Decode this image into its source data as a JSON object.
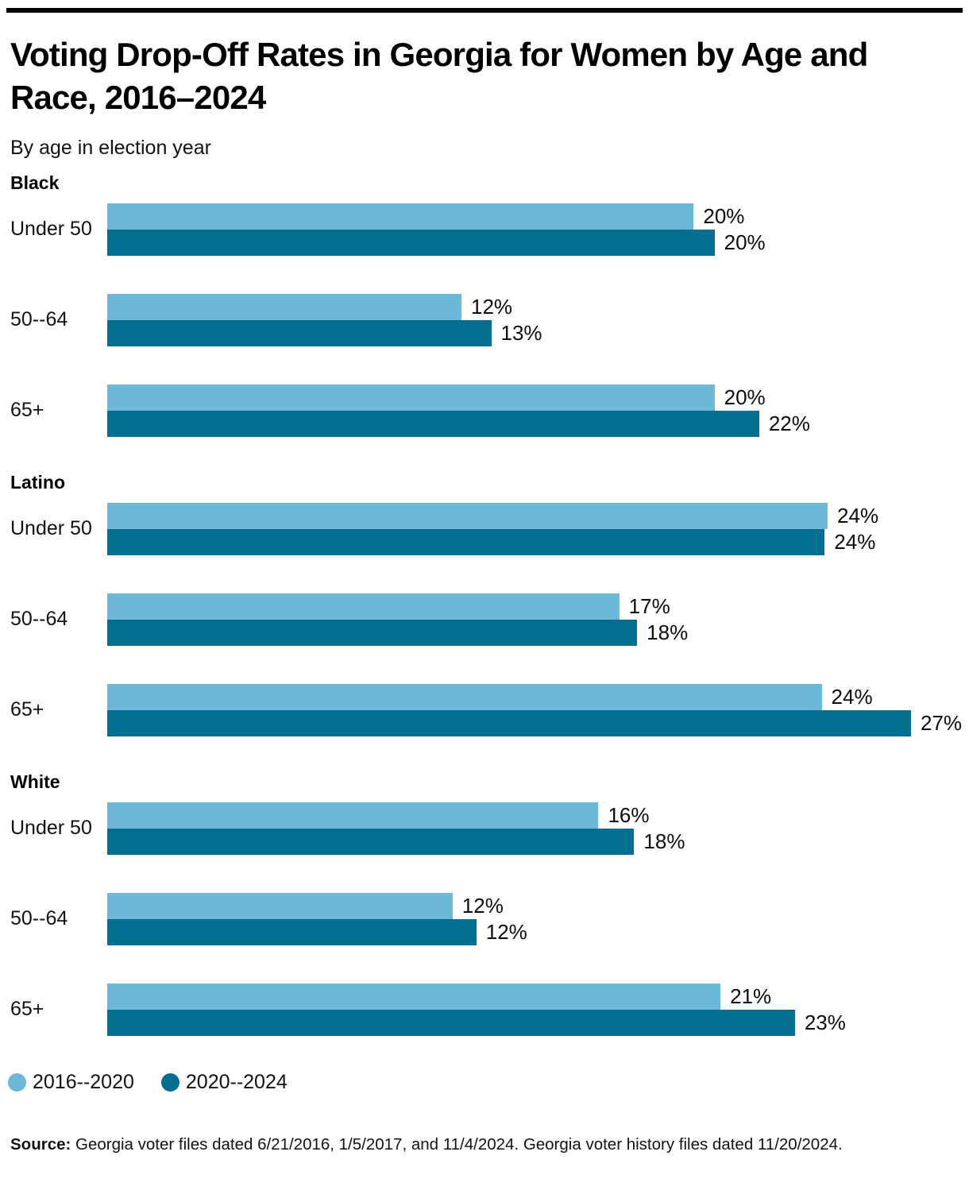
{
  "page": {
    "title": "Voting Drop-Off Rates in Georgia for Women by Age and Race, 2016–2024",
    "subtitle": "By age in election year"
  },
  "colors": {
    "series_2016_2020": "#6CB8D6",
    "series_2020_2024": "#046E91",
    "rule": "#000000",
    "text": "#121212"
  },
  "legend": {
    "items": [
      {
        "label": "2016--2020",
        "color": "#6CB8D6"
      },
      {
        "label": "2020--2024",
        "color": "#046E91"
      }
    ]
  },
  "source": {
    "prefix": "Source:",
    "text": " Georgia voter files dated 6/21/2016, 1/5/2017, and 11/4/2024. Georgia voter history files dated 11/20/2024."
  },
  "chart_data": {
    "type": "bar",
    "orientation": "horizontal",
    "unit": "percent",
    "xlim": [
      0,
      27
    ],
    "grid": false,
    "legend_position": "bottom",
    "series_names": [
      "2016--2020",
      "2020--2024"
    ],
    "series_colors": [
      "#6CB8D6",
      "#046E91"
    ],
    "groups": [
      {
        "name": "Black",
        "rows": [
          {
            "category": "Under 50",
            "series": [
              {
                "name": "2016--2020",
                "value": 19.7,
                "label": "20%"
              },
              {
                "name": "2020--2024",
                "value": 20.4,
                "label": "20%"
              }
            ]
          },
          {
            "category": "50--64",
            "series": [
              {
                "name": "2016--2020",
                "value": 11.9,
                "label": "12%"
              },
              {
                "name": "2020--2024",
                "value": 12.9,
                "label": "13%"
              }
            ]
          },
          {
            "category": "65+",
            "series": [
              {
                "name": "2016--2020",
                "value": 20.4,
                "label": "20%"
              },
              {
                "name": "2020--2024",
                "value": 21.9,
                "label": "22%"
              }
            ]
          }
        ]
      },
      {
        "name": "Latino",
        "rows": [
          {
            "category": "Under 50",
            "series": [
              {
                "name": "2016--2020",
                "value": 24.2,
                "label": "24%"
              },
              {
                "name": "2020--2024",
                "value": 24.1,
                "label": "24%"
              }
            ]
          },
          {
            "category": "50--64",
            "series": [
              {
                "name": "2016--2020",
                "value": 17.2,
                "label": "17%"
              },
              {
                "name": "2020--2024",
                "value": 17.8,
                "label": "18%"
              }
            ]
          },
          {
            "category": "65+",
            "series": [
              {
                "name": "2016--2020",
                "value": 24.0,
                "label": "24%"
              },
              {
                "name": "2020--2024",
                "value": 27.0,
                "label": "27%"
              }
            ]
          }
        ]
      },
      {
        "name": "White",
        "rows": [
          {
            "category": "Under 50",
            "series": [
              {
                "name": "2016--2020",
                "value": 16.5,
                "label": "16%"
              },
              {
                "name": "2020--2024",
                "value": 17.7,
                "label": "18%"
              }
            ]
          },
          {
            "category": "50--64",
            "series": [
              {
                "name": "2016--2020",
                "value": 11.6,
                "label": "12%"
              },
              {
                "name": "2020--2024",
                "value": 12.4,
                "label": "12%"
              }
            ]
          },
          {
            "category": "65+",
            "series": [
              {
                "name": "2016--2020",
                "value": 20.6,
                "label": "21%"
              },
              {
                "name": "2020--2024",
                "value": 23.1,
                "label": "23%"
              }
            ]
          }
        ]
      }
    ]
  }
}
